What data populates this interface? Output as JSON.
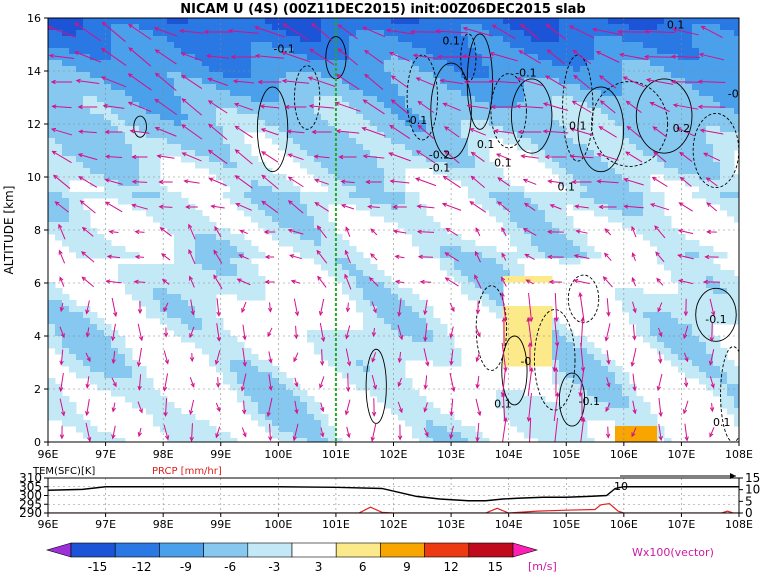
{
  "title": "NICAM U (4S) (00Z11DEC2015) init:00Z06DEC2015 slab",
  "chart_data": [
    {
      "type": "heatmap",
      "name": "zonal-wind-cross-section",
      "ylabel": "ALTITUDE [km]",
      "x_ticks": [
        "96E",
        "97E",
        "98E",
        "99E",
        "100E",
        "101E",
        "102E",
        "103E",
        "104E",
        "105E",
        "106E",
        "107E",
        "108E"
      ],
      "y_ticks": [
        "0",
        "2",
        "4",
        "6",
        "8",
        "10",
        "12",
        "14",
        "16"
      ],
      "xlim": [
        96,
        108
      ],
      "ylim": [
        0,
        16
      ],
      "grid": true,
      "vertical_marker_lon": 101,
      "contour_labels": [
        {
          "text": "-0.1",
          "lon": 100.1,
          "alt": 14.7
        },
        {
          "text": "-0.1",
          "lon": 104.3,
          "alt": 13.8
        },
        {
          "text": "0.1",
          "lon": 103.0,
          "alt": 15.0
        },
        {
          "text": "0.1",
          "lon": 106.9,
          "alt": 15.6
        },
        {
          "text": "-0.1",
          "lon": 102.4,
          "alt": 12.0
        },
        {
          "text": "-0.2",
          "lon": 102.8,
          "alt": 10.7
        },
        {
          "text": "-0.1",
          "lon": 102.8,
          "alt": 10.2
        },
        {
          "text": "0.1",
          "lon": 103.6,
          "alt": 11.1
        },
        {
          "text": "0.1",
          "lon": 103.9,
          "alt": 10.4
        },
        {
          "text": "0.1",
          "lon": 105.2,
          "alt": 11.8
        },
        {
          "text": "0.2",
          "lon": 107.0,
          "alt": 11.7
        },
        {
          "text": "0.1",
          "lon": 105.0,
          "alt": 9.5
        },
        {
          "text": "-0",
          "lon": 107.9,
          "alt": 13.0
        },
        {
          "text": "-0",
          "lon": 104.3,
          "alt": 2.9
        },
        {
          "text": "-0.1",
          "lon": 105.4,
          "alt": 1.4
        },
        {
          "text": "0.1",
          "lon": 103.9,
          "alt": 1.3
        },
        {
          "text": "-0.1",
          "lon": 107.6,
          "alt": 4.5
        },
        {
          "text": "0.1",
          "lon": 107.7,
          "alt": 0.6
        }
      ]
    },
    {
      "type": "line",
      "name": "surface-panel",
      "x_ticks": [
        "96E",
        "97E",
        "98E",
        "99E",
        "100E",
        "101E",
        "102E",
        "103E",
        "104E",
        "105E",
        "106E",
        "107E",
        "108E"
      ],
      "xlim": [
        96,
        108
      ],
      "left_axis": {
        "label": "TEM(SFC)[K]",
        "ticks": [
          "290",
          "295",
          "300",
          "305",
          "310"
        ],
        "range": [
          290,
          310
        ]
      },
      "right_axis": {
        "label": "PRCP [mm/hr]",
        "ticks": [
          "0",
          "5",
          "10",
          "15"
        ],
        "range": [
          0,
          15
        ]
      },
      "marker_label": "10",
      "series": [
        {
          "name": "TEM(SFC)[K]",
          "color": "#000000",
          "x": [
            96,
            96.6,
            97,
            98,
            99,
            100,
            101,
            101.8,
            102.4,
            102.8,
            103.3,
            103.6,
            103.9,
            104.2,
            104.6,
            105.0,
            105.4,
            105.7,
            105.85,
            106,
            106.5,
            107,
            108
          ],
          "y": [
            303,
            303.5,
            305,
            305,
            305,
            305,
            304.7,
            304,
            299.5,
            298,
            297,
            297,
            298,
            298.5,
            299,
            299,
            299.5,
            300,
            304,
            305,
            305,
            305,
            305
          ]
        },
        {
          "name": "PRCP [mm/hr]",
          "color": "#e02020",
          "x": [
            96,
            101.4,
            101.6,
            101.8,
            102,
            103,
            103.6,
            103.8,
            104,
            104.5,
            105,
            105.5,
            105.6,
            105.75,
            105.9,
            106,
            107,
            107.7,
            107.8,
            107.9,
            108
          ],
          "y": [
            0,
            0,
            2.5,
            0.3,
            0,
            0,
            0,
            2,
            0,
            0.8,
            1.2,
            1.5,
            3.5,
            4,
            0.8,
            0,
            0,
            0,
            0.8,
            0,
            0
          ]
        }
      ]
    }
  ],
  "colorbar": {
    "ticks": [
      "-15",
      "-12",
      "-9",
      "-6",
      "-3",
      "3",
      "6",
      "9",
      "12",
      "15"
    ],
    "unit": "[m/s]",
    "colors": [
      "#9b30d9",
      "#1c54d8",
      "#2a78e4",
      "#4aa0ea",
      "#86c8ef",
      "#c3e9f7",
      "#ffffff",
      "#fce98a",
      "#f8a500",
      "#ee3a12",
      "#c00a1c",
      "#ff1fb4"
    ]
  },
  "vector_label": "Wx100(vector)"
}
